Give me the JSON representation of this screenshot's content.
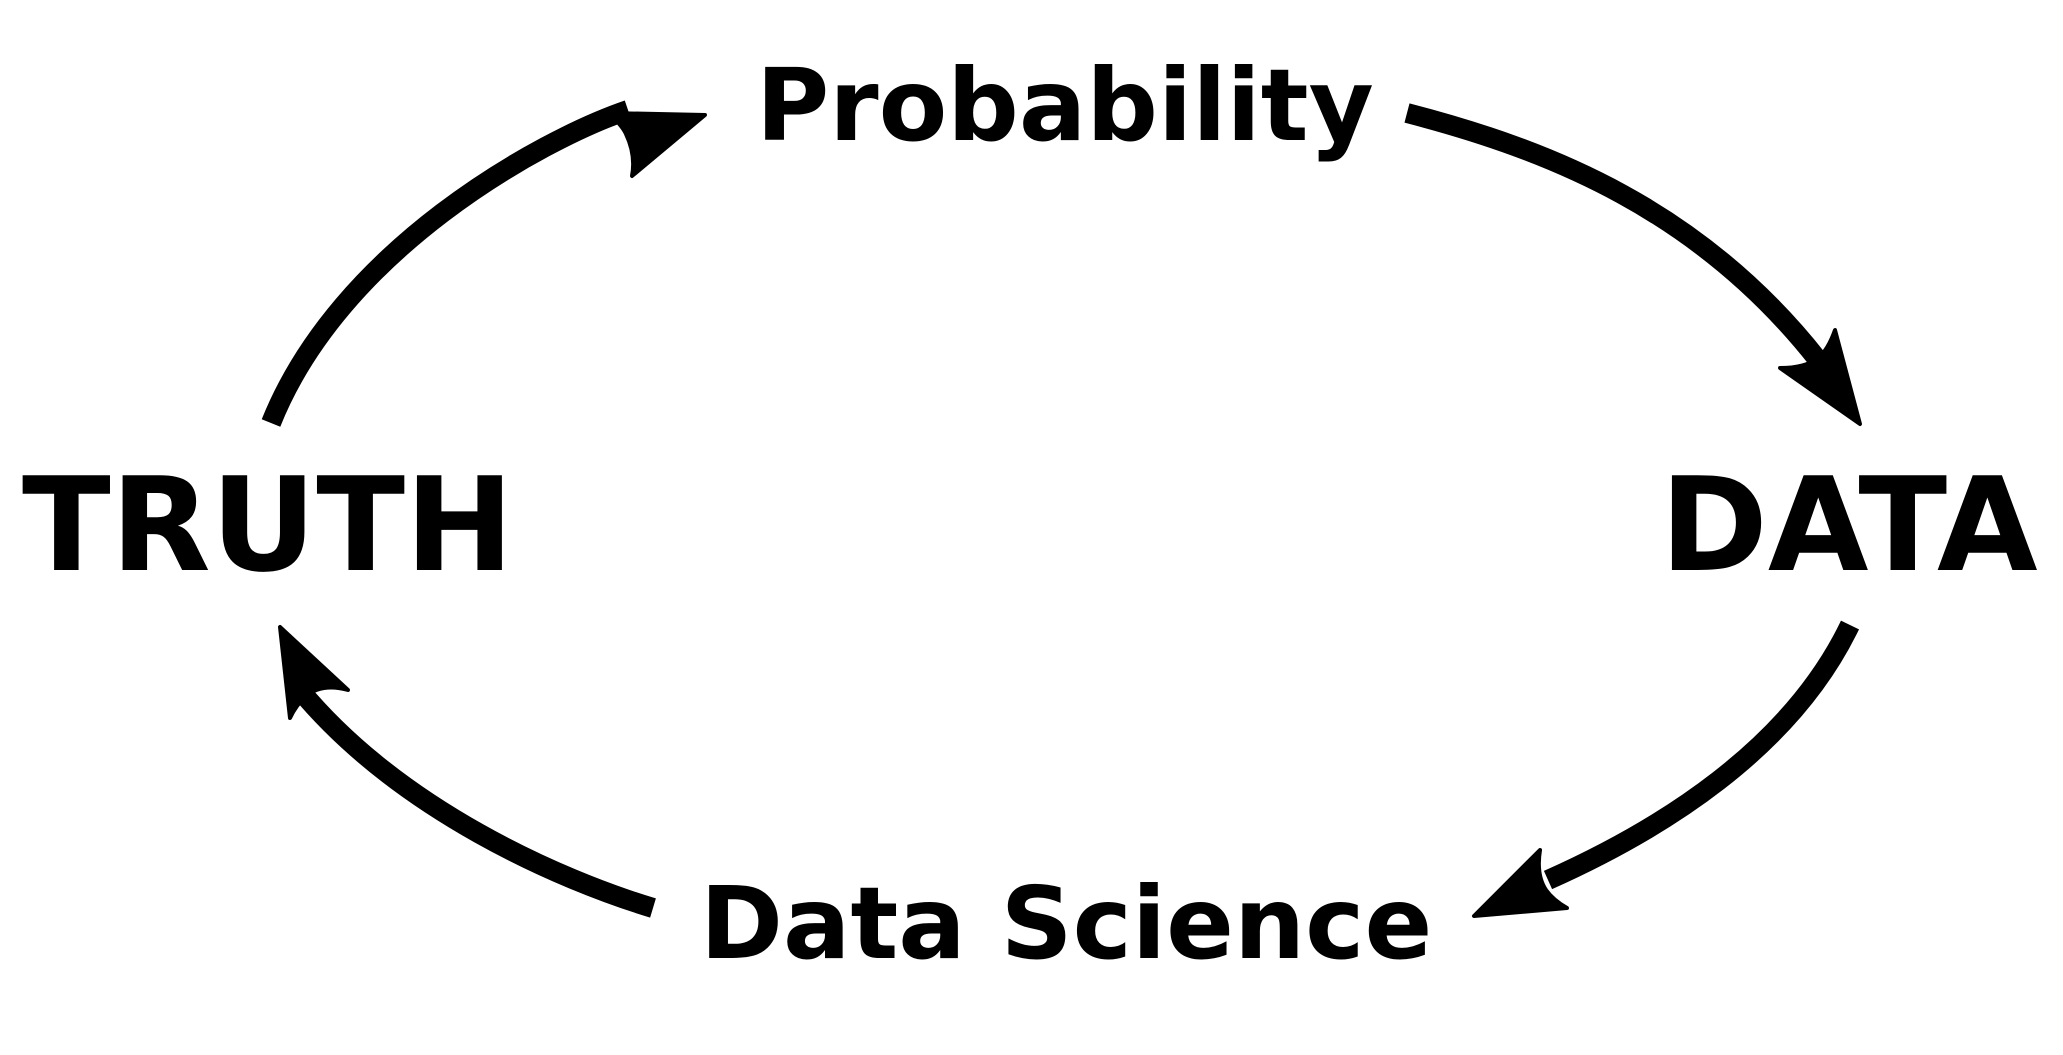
{
  "nodes": {
    "probability": "Probability",
    "truth": "TRUTH",
    "data": "DATA",
    "data_science": "Data Science"
  },
  "colors": {
    "ink": "#000000",
    "background": "#ffffff"
  }
}
